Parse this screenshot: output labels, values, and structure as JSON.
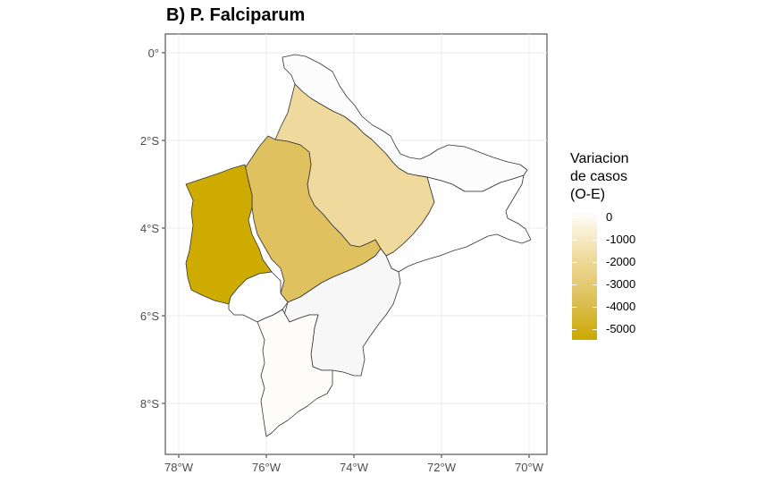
{
  "title": "B) P. Falciparum",
  "map": {
    "y_axis": [
      "0°",
      "2°S",
      "4°S",
      "6°S",
      "8°S"
    ],
    "x_axis": [
      "78°W",
      "76°W",
      "74°W",
      "72°W",
      "70°W"
    ],
    "regions": [
      {
        "id": "region-north",
        "value": 0,
        "color": "#fcfcfc"
      },
      {
        "id": "region-northeast-corridor",
        "value": -100,
        "color": "#f9f9f9"
      },
      {
        "id": "region-central-east",
        "value": -2200,
        "color": "#efd99c"
      },
      {
        "id": "region-central",
        "value": -3500,
        "color": "#dfc160"
      },
      {
        "id": "region-west",
        "value": -5200,
        "color": "#cdab00"
      },
      {
        "id": "region-east",
        "value": 0,
        "color": "#fefefe"
      },
      {
        "id": "region-west-small",
        "value": 0,
        "color": "#ffffff"
      },
      {
        "id": "region-south-east",
        "value": -100,
        "color": "#f7f7f7"
      },
      {
        "id": "region-south",
        "value": 0,
        "color": "#fdfcf9"
      }
    ]
  },
  "legend": {
    "title_lines": [
      "Variacion",
      "de casos",
      "(O-E)"
    ],
    "labels": [
      "0",
      "-1000",
      "-2000",
      "-3000",
      "-4000",
      "-5000"
    ],
    "color_low": "#cca800",
    "color_high": "#ffffff"
  }
}
